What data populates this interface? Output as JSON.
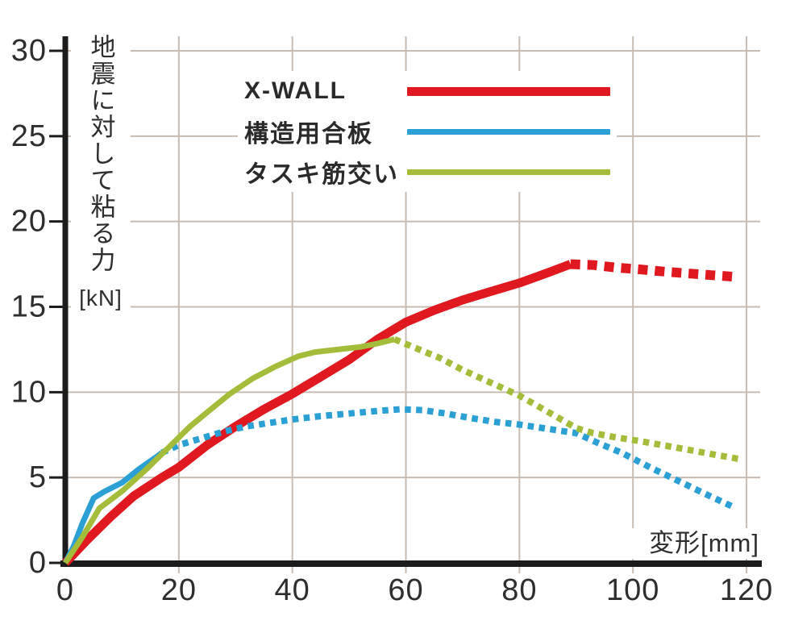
{
  "chart_data": {
    "type": "line",
    "title": "",
    "xlabel": "変形[mm]",
    "ylabel": "地震に対して粘る力",
    "ylabel_unit": "[kN]",
    "xlim": [
      0,
      120
    ],
    "ylim": [
      0,
      30
    ],
    "xticks": [
      0,
      20,
      40,
      60,
      80,
      100,
      120
    ],
    "yticks": [
      0,
      5,
      10,
      15,
      20,
      25,
      30
    ],
    "grid": true,
    "legend_position": "top-center-inside",
    "series": [
      {
        "name": "X-WALL",
        "color": "#e0181f",
        "line_width": 11,
        "dash": [
          12,
          9
        ],
        "solid": [
          [
            0,
            0
          ],
          [
            4,
            1.4
          ],
          [
            8,
            2.7
          ],
          [
            12,
            3.9
          ],
          [
            17,
            5.0
          ],
          [
            20,
            5.6
          ],
          [
            25,
            6.9
          ],
          [
            30,
            8.0
          ],
          [
            35,
            9.0
          ],
          [
            40,
            9.9
          ],
          [
            45,
            10.9
          ],
          [
            50,
            11.9
          ],
          [
            55,
            13.1
          ],
          [
            60,
            14.1
          ],
          [
            65,
            14.8
          ],
          [
            70,
            15.4
          ],
          [
            75,
            15.9
          ],
          [
            80,
            16.4
          ],
          [
            85,
            17.0
          ],
          [
            89,
            17.5
          ]
        ],
        "dotted": [
          [
            89,
            17.5
          ],
          [
            93,
            17.45
          ],
          [
            97,
            17.3
          ],
          [
            101,
            17.2
          ],
          [
            106,
            17.05
          ],
          [
            110,
            16.95
          ],
          [
            114,
            16.85
          ],
          [
            118.5,
            16.75
          ]
        ]
      },
      {
        "name": "構造用合板",
        "color": "#2aa0d5",
        "line_width": 7,
        "dash": [
          7.5,
          6.5
        ],
        "solid": [
          [
            0,
            0
          ],
          [
            1.5,
            1.0
          ],
          [
            3,
            2.3
          ],
          [
            5,
            3.8
          ],
          [
            7,
            4.2
          ],
          [
            10,
            4.7
          ],
          [
            13,
            5.5
          ],
          [
            16,
            6.2
          ],
          [
            17,
            6.45
          ]
        ],
        "dotted": [
          [
            17,
            6.45
          ],
          [
            20,
            6.9
          ],
          [
            24,
            7.3
          ],
          [
            28,
            7.7
          ],
          [
            32,
            8.0
          ],
          [
            36,
            8.2
          ],
          [
            40,
            8.4
          ],
          [
            45,
            8.6
          ],
          [
            50,
            8.75
          ],
          [
            55,
            8.9
          ],
          [
            59,
            9.0
          ],
          [
            63,
            8.95
          ],
          [
            67,
            8.75
          ],
          [
            72,
            8.45
          ],
          [
            76,
            8.25
          ],
          [
            80,
            8.1
          ],
          [
            85,
            7.85
          ],
          [
            90,
            7.6
          ],
          [
            94,
            7.0
          ],
          [
            98,
            6.45
          ],
          [
            103,
            5.6
          ],
          [
            108,
            4.8
          ],
          [
            113,
            4.0
          ],
          [
            117.5,
            3.3
          ]
        ]
      },
      {
        "name": "タスキ筋交い",
        "color": "#a3bd3a",
        "line_width": 7,
        "dash": [
          7.5,
          6.5
        ],
        "solid": [
          [
            0,
            0
          ],
          [
            3,
            1.5
          ],
          [
            6,
            3.2
          ],
          [
            10,
            4.2
          ],
          [
            14,
            5.4
          ],
          [
            18,
            6.7
          ],
          [
            22,
            8.0
          ],
          [
            26,
            9.1
          ],
          [
            29,
            9.9
          ],
          [
            33,
            10.8
          ],
          [
            37,
            11.5
          ],
          [
            41,
            12.1
          ],
          [
            44,
            12.35
          ],
          [
            48,
            12.5
          ],
          [
            52,
            12.65
          ],
          [
            55,
            12.85
          ],
          [
            58,
            13.1
          ]
        ],
        "dotted": [
          [
            58,
            13.1
          ],
          [
            62,
            12.55
          ],
          [
            66,
            12.0
          ],
          [
            70,
            11.3
          ],
          [
            75,
            10.55
          ],
          [
            80,
            9.8
          ],
          [
            85,
            8.85
          ],
          [
            90,
            7.9
          ],
          [
            93,
            7.6
          ],
          [
            97,
            7.35
          ],
          [
            101,
            7.15
          ],
          [
            106,
            6.85
          ],
          [
            111,
            6.55
          ],
          [
            115,
            6.3
          ],
          [
            118.5,
            6.1
          ]
        ]
      }
    ]
  },
  "colors": {
    "background": "#ffffff",
    "grid": "#c8bcb2",
    "axis": "#1c1c1c",
    "text": "#2e2e2e"
  }
}
